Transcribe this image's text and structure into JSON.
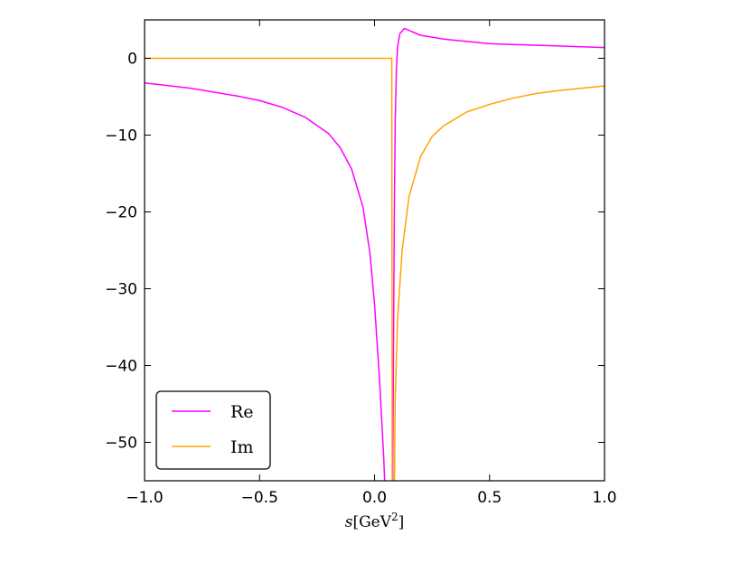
{
  "chart_data": {
    "type": "line",
    "title": "",
    "xlabel": {
      "var": "s",
      "bracket_open": "[",
      "unit": "GeV",
      "exp": "2",
      "bracket_close": "]"
    },
    "ylabel": "",
    "xlim": [
      -1.0,
      1.0
    ],
    "ylim": [
      -55,
      5
    ],
    "xticks": [
      -1.0,
      -0.5,
      0.0,
      0.5,
      1.0
    ],
    "xtick_labels": [
      "−1.0",
      "−0.5",
      "0.0",
      "0.5",
      "1.0"
    ],
    "yticks": [
      0,
      -10,
      -20,
      -30,
      -40,
      -50
    ],
    "ytick_labels": [
      "0",
      "−10",
      "−20",
      "−30",
      "−40",
      "−50"
    ],
    "grid": false,
    "legend_position": "lower-left",
    "threshold_x": 0.078,
    "series": [
      {
        "name": "Re",
        "color": "#ff00ff",
        "points": [
          [
            -1.0,
            -3.2
          ],
          [
            -0.8,
            -3.9
          ],
          [
            -0.6,
            -4.9
          ],
          [
            -0.5,
            -5.5
          ],
          [
            -0.4,
            -6.4
          ],
          [
            -0.3,
            -7.7
          ],
          [
            -0.2,
            -9.8
          ],
          [
            -0.15,
            -11.6
          ],
          [
            -0.1,
            -14.4
          ],
          [
            -0.05,
            -19.4
          ],
          [
            -0.02,
            -25.4
          ],
          [
            0.0,
            -32.0
          ],
          [
            0.02,
            -41.0
          ],
          [
            0.04,
            -52.0
          ],
          [
            0.05,
            -60.0
          ],
          [
            0.078,
            -60.0
          ],
          [
            0.082,
            -40.0
          ],
          [
            0.086,
            -20.0
          ],
          [
            0.09,
            -8.0
          ],
          [
            0.095,
            -1.5
          ],
          [
            0.1,
            1.5
          ],
          [
            0.11,
            3.2
          ],
          [
            0.13,
            3.9
          ],
          [
            0.16,
            3.5
          ],
          [
            0.2,
            3.0
          ],
          [
            0.3,
            2.5
          ],
          [
            0.4,
            2.2
          ],
          [
            0.5,
            1.9
          ],
          [
            0.6,
            1.8
          ],
          [
            0.7,
            1.7
          ],
          [
            0.8,
            1.6
          ],
          [
            0.9,
            1.5
          ],
          [
            1.0,
            1.4
          ]
        ]
      },
      {
        "name": "Im",
        "color": "#ffa500",
        "points": [
          [
            -1.0,
            0.0
          ],
          [
            0.075,
            0.0
          ],
          [
            0.077,
            -60.0
          ],
          [
            0.08,
            -60.0
          ],
          [
            0.085,
            -60.0
          ],
          [
            0.09,
            -44.0
          ],
          [
            0.1,
            -34.0
          ],
          [
            0.12,
            -25.0
          ],
          [
            0.15,
            -18.0
          ],
          [
            0.2,
            -12.8
          ],
          [
            0.25,
            -10.2
          ],
          [
            0.3,
            -8.8
          ],
          [
            0.4,
            -7.0
          ],
          [
            0.5,
            -6.0
          ],
          [
            0.6,
            -5.2
          ],
          [
            0.7,
            -4.6
          ],
          [
            0.8,
            -4.2
          ],
          [
            0.9,
            -3.9
          ],
          [
            1.0,
            -3.6
          ]
        ]
      }
    ]
  }
}
